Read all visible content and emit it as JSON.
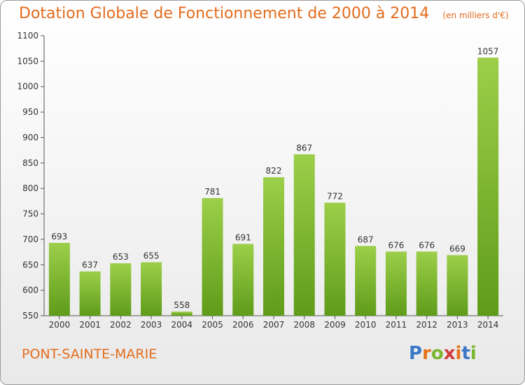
{
  "header": {
    "title": "Dotation Globale de Fonctionnement de 2000 à 2014",
    "unit": "(en milliers d'€)"
  },
  "footer": {
    "commune": "PONT-SAINTE-MARIE",
    "logo": "Proxiti"
  },
  "colors": {
    "accent": "#e36c1d",
    "bar_top": "#9ccf4a",
    "bar_bottom": "#5f9c19"
  },
  "chart_data": {
    "type": "bar",
    "title": "Dotation Globale de Fonctionnement de 2000 à 2014",
    "categories": [
      "2000",
      "2001",
      "2002",
      "2003",
      "2004",
      "2005",
      "2006",
      "2007",
      "2008",
      "2009",
      "2010",
      "2011",
      "2012",
      "2013",
      "2014"
    ],
    "values": [
      693,
      637,
      653,
      655,
      558,
      781,
      691,
      822,
      867,
      772,
      687,
      676,
      676,
      669,
      1057
    ],
    "ylim": [
      550,
      1100
    ],
    "yticks": [
      550,
      600,
      650,
      700,
      750,
      800,
      850,
      900,
      950,
      1000,
      1050,
      1100
    ],
    "grid": false,
    "legend": "none"
  }
}
